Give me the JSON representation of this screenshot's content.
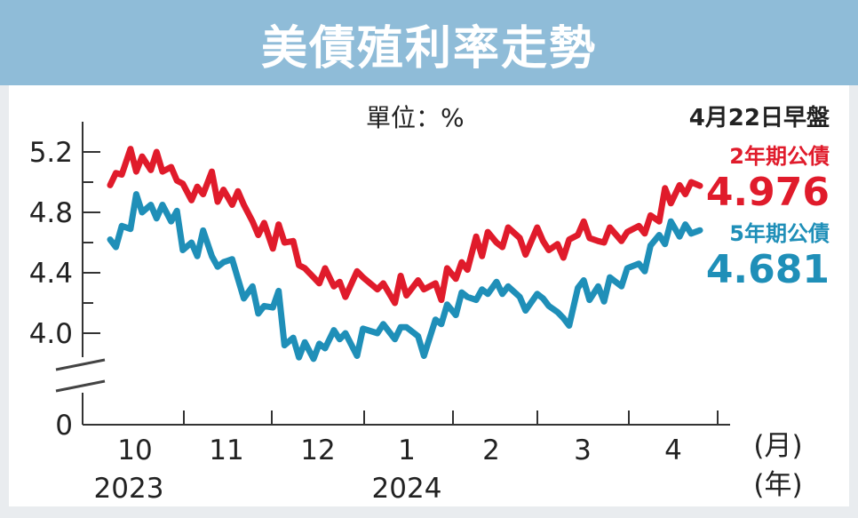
{
  "chart_data": {
    "type": "line",
    "title": "美債殖利率走勢",
    "unit_label": "單位：%",
    "y_ticks": [
      "5.2",
      "4.8",
      "4.4",
      "4.0",
      "0"
    ],
    "x_month_labels": [
      "10",
      "11",
      "12",
      "1",
      "2",
      "3",
      "4"
    ],
    "x_year_labels": [
      "2023",
      "2024"
    ],
    "x_unit_month": "(月)",
    "x_unit_year": "(年)",
    "legend_date": "4月22日早盤",
    "ylim": [
      3.8,
      5.3
    ],
    "y_axis_break": true,
    "grid": false,
    "legend_placement": "right",
    "x_range": [
      "2023-10-02",
      "2024-04-22"
    ],
    "series": [
      {
        "name": "2年期公債",
        "last_value": "4.976",
        "color": "#e01b2b",
        "x": [
          "2023-10-02",
          "2023-10-04",
          "2023-10-06",
          "2023-10-09",
          "2023-10-11",
          "2023-10-13",
          "2023-10-16",
          "2023-10-18",
          "2023-10-20",
          "2023-10-23",
          "2023-10-25",
          "2023-10-27",
          "2023-10-30",
          "2023-11-01",
          "2023-11-03",
          "2023-11-06",
          "2023-11-08",
          "2023-11-10",
          "2023-11-13",
          "2023-11-15",
          "2023-11-17",
          "2023-11-20",
          "2023-11-22",
          "2023-11-24",
          "2023-11-27",
          "2023-11-29",
          "2023-12-01",
          "2023-12-04",
          "2023-12-06",
          "2023-12-08",
          "2023-12-11",
          "2023-12-13",
          "2023-12-15",
          "2023-12-18",
          "2023-12-20",
          "2023-12-22",
          "2023-12-26",
          "2023-12-28",
          "2024-01-02",
          "2024-01-04",
          "2024-01-08",
          "2024-01-10",
          "2024-01-12",
          "2024-01-16",
          "2024-01-18",
          "2024-01-22",
          "2024-01-24",
          "2024-01-26",
          "2024-01-29",
          "2024-01-31",
          "2024-02-02",
          "2024-02-05",
          "2024-02-07",
          "2024-02-09",
          "2024-02-12",
          "2024-02-14",
          "2024-02-16",
          "2024-02-20",
          "2024-02-22",
          "2024-02-26",
          "2024-02-28",
          "2024-03-01",
          "2024-03-04",
          "2024-03-06",
          "2024-03-08",
          "2024-03-11",
          "2024-03-13",
          "2024-03-15",
          "2024-03-18",
          "2024-03-20",
          "2024-03-22",
          "2024-03-26",
          "2024-03-28",
          "2024-04-01",
          "2024-04-03",
          "2024-04-05",
          "2024-04-08",
          "2024-04-10",
          "2024-04-12",
          "2024-04-15",
          "2024-04-17",
          "2024-04-19",
          "2024-04-22"
        ],
        "values": [
          4.98,
          5.06,
          5.05,
          5.22,
          5.07,
          5.17,
          5.08,
          5.2,
          5.07,
          5.1,
          5.01,
          4.99,
          4.88,
          4.97,
          4.92,
          5.07,
          4.87,
          4.95,
          4.85,
          4.94,
          4.85,
          4.74,
          4.65,
          4.73,
          4.56,
          4.72,
          4.6,
          4.61,
          4.45,
          4.43,
          4.37,
          4.33,
          4.43,
          4.31,
          4.34,
          4.24,
          4.41,
          4.37,
          4.29,
          4.33,
          4.2,
          4.38,
          4.25,
          4.35,
          4.29,
          4.33,
          4.22,
          4.43,
          4.36,
          4.47,
          4.42,
          4.64,
          4.51,
          4.67,
          4.6,
          4.57,
          4.7,
          4.63,
          4.52,
          4.7,
          4.61,
          4.55,
          4.59,
          4.5,
          4.62,
          4.65,
          4.74,
          4.63,
          4.61,
          4.6,
          4.7,
          4.61,
          4.67,
          4.71,
          4.66,
          4.78,
          4.74,
          4.96,
          4.86,
          4.98,
          4.92,
          5.0,
          4.976
        ]
      },
      {
        "name": "5年期公債",
        "last_value": "4.681",
        "color": "#1f8fb8",
        "x": [
          "2023-10-02",
          "2023-10-04",
          "2023-10-06",
          "2023-10-09",
          "2023-10-11",
          "2023-10-13",
          "2023-10-16",
          "2023-10-18",
          "2023-10-20",
          "2023-10-23",
          "2023-10-25",
          "2023-10-27",
          "2023-10-30",
          "2023-11-01",
          "2023-11-03",
          "2023-11-06",
          "2023-11-08",
          "2023-11-10",
          "2023-11-13",
          "2023-11-15",
          "2023-11-17",
          "2023-11-20",
          "2023-11-22",
          "2023-11-24",
          "2023-11-27",
          "2023-11-29",
          "2023-12-01",
          "2023-12-04",
          "2023-12-06",
          "2023-12-08",
          "2023-12-11",
          "2023-12-13",
          "2023-12-15",
          "2023-12-18",
          "2023-12-20",
          "2023-12-22",
          "2023-12-26",
          "2023-12-28",
          "2024-01-02",
          "2024-01-04",
          "2024-01-08",
          "2024-01-10",
          "2024-01-12",
          "2024-01-16",
          "2024-01-18",
          "2024-01-22",
          "2024-01-24",
          "2024-01-26",
          "2024-01-29",
          "2024-01-31",
          "2024-02-02",
          "2024-02-05",
          "2024-02-07",
          "2024-02-09",
          "2024-02-12",
          "2024-02-14",
          "2024-02-16",
          "2024-02-20",
          "2024-02-22",
          "2024-02-26",
          "2024-02-28",
          "2024-03-01",
          "2024-03-04",
          "2024-03-06",
          "2024-03-08",
          "2024-03-11",
          "2024-03-13",
          "2024-03-15",
          "2024-03-18",
          "2024-03-20",
          "2024-03-22",
          "2024-03-26",
          "2024-03-28",
          "2024-04-01",
          "2024-04-03",
          "2024-04-05",
          "2024-04-08",
          "2024-04-10",
          "2024-04-12",
          "2024-04-15",
          "2024-04-17",
          "2024-04-19",
          "2024-04-22"
        ],
        "values": [
          4.62,
          4.57,
          4.71,
          4.69,
          4.92,
          4.8,
          4.85,
          4.76,
          4.85,
          4.74,
          4.81,
          4.55,
          4.6,
          4.51,
          4.68,
          4.51,
          4.44,
          4.47,
          4.49,
          4.36,
          4.23,
          4.31,
          4.13,
          4.18,
          4.17,
          4.28,
          3.92,
          3.97,
          3.84,
          3.94,
          3.83,
          3.93,
          3.9,
          4.02,
          3.96,
          4.0,
          3.85,
          4.03,
          4.0,
          4.06,
          3.96,
          4.04,
          4.04,
          3.98,
          3.85,
          4.09,
          4.06,
          4.19,
          4.12,
          4.27,
          4.24,
          4.22,
          4.29,
          4.26,
          4.34,
          4.26,
          4.31,
          4.24,
          4.15,
          4.26,
          4.23,
          4.18,
          4.14,
          4.1,
          4.05,
          4.3,
          4.35,
          4.22,
          4.31,
          4.21,
          4.37,
          4.31,
          4.43,
          4.46,
          4.41,
          4.58,
          4.65,
          4.59,
          4.74,
          4.64,
          4.72,
          4.66,
          4.681
        ]
      }
    ]
  }
}
